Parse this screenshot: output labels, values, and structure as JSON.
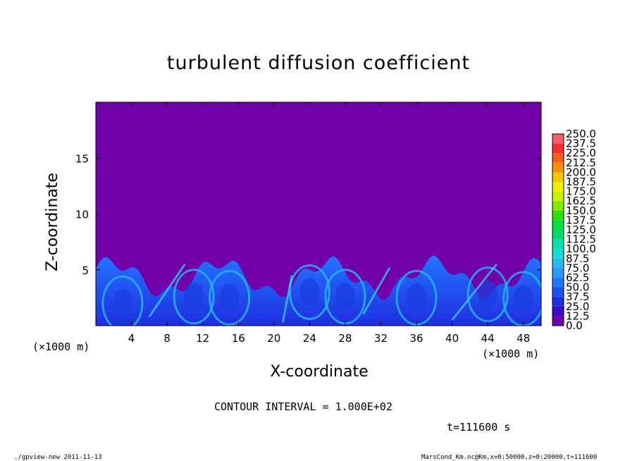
{
  "chart_data": {
    "type": "heatmap",
    "title": "turbulent diffusion coefficient",
    "xlabel": "X-coordinate",
    "ylabel": "Z-coordinate",
    "x_unit": "(×1000 m)",
    "y_unit": "(×1000 m)",
    "xlim": [
      0,
      50
    ],
    "ylim": [
      0,
      20
    ],
    "x_ticks": [
      "4",
      "8",
      "12",
      "16",
      "20",
      "24",
      "28",
      "32",
      "36",
      "40",
      "44",
      "48"
    ],
    "y_ticks": [
      "5",
      "10",
      "15"
    ],
    "colorbar": {
      "levels": [
        "0.0",
        "12.5",
        "25.0",
        "37.5",
        "50.0",
        "62.5",
        "75.0",
        "87.5",
        "100.0",
        "112.5",
        "125.0",
        "137.5",
        "150.0",
        "162.5",
        "175.0",
        "187.5",
        "200.0",
        "212.5",
        "225.0",
        "237.5",
        "250.0"
      ],
      "colors": [
        "#6c00a8",
        "#3a0ac8",
        "#1e2ee0",
        "#1a52f0",
        "#2474ff",
        "#2d98ff",
        "#28b8f0",
        "#18d8d8",
        "#00e0b0",
        "#00d870",
        "#00e040",
        "#30e000",
        "#80e800",
        "#c8f000",
        "#f0f000",
        "#f8c800",
        "#f89000",
        "#f86020",
        "#f83030",
        "#f86068",
        "#f898a0"
      ]
    },
    "background_color": "#7000a8",
    "field_description_values": {
      "max_turbulent_layer_top_km": 6.5,
      "dominant_range": [
        0,
        87.5
      ]
    }
  },
  "annotations": {
    "contour": "CONTOUR INTERVAL = 1.000E+02",
    "time": "t=111600 s",
    "footer_left": "./gpview-new  2011-11-13",
    "footer_right": "MarsCond_Km.nc@Km,x=0:50000,z=0:20000,t=111600"
  }
}
